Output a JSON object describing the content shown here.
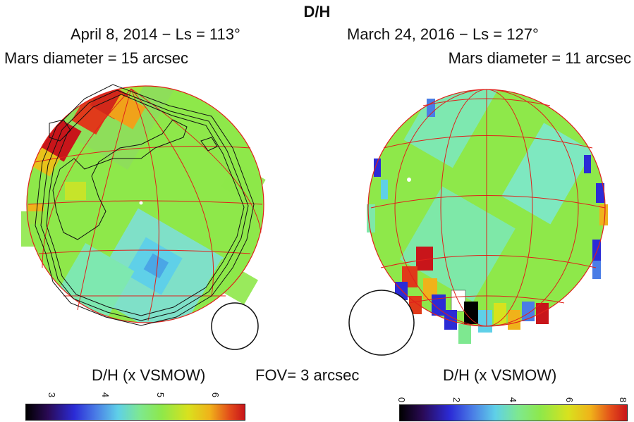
{
  "title": "D/H",
  "left_panel": {
    "date_ls": "April 8, 2014 − Ls = 113°",
    "diameter": "Mars diameter = 15 arcsec",
    "colorbar_label": "D/H (x VSMOW)",
    "colorbar_ticks": [
      "3",
      "4",
      "5",
      "6"
    ]
  },
  "right_panel": {
    "date_ls": "March 24, 2016 − Ls = 127°",
    "diameter": "Mars diameter = 11 arcsec",
    "colorbar_label": "D/H (x VSMOW)",
    "colorbar_ticks": [
      "0",
      "2",
      "4",
      "6",
      "8"
    ]
  },
  "fov_label": "FOV= 3 arcsec",
  "colors": {
    "grid": "#e0201a",
    "contour": "#111111",
    "base_green": "#7ee84a"
  }
}
